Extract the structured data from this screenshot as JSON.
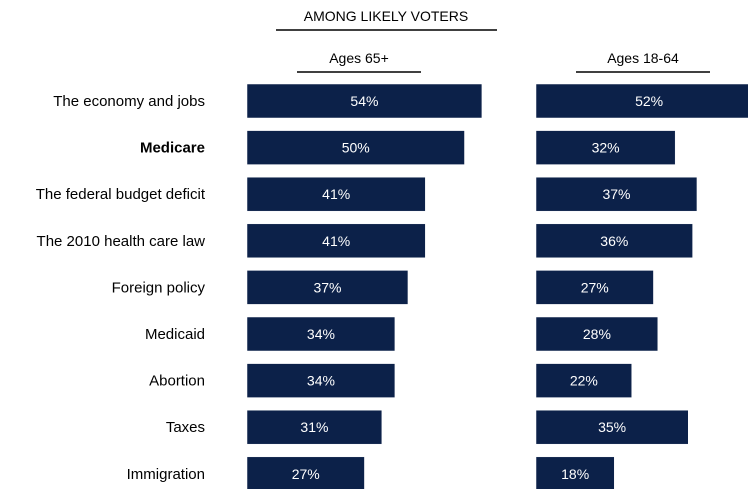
{
  "header": {
    "title": "AMONG LIKELY VOTERS"
  },
  "chart_data": {
    "type": "bar",
    "orientation": "horizontal",
    "title": "AMONG LIKELY VOTERS",
    "categories": [
      "The economy and jobs",
      "Medicare",
      "The federal budget deficit",
      "The 2010 health care law",
      "Foreign policy",
      "Medicaid",
      "Abortion",
      "Taxes",
      "Immigration"
    ],
    "emphasized_category": "Medicare",
    "series": [
      {
        "name": "Ages 65+",
        "values": [
          54,
          50,
          41,
          41,
          37,
          34,
          34,
          31,
          27
        ],
        "labels": [
          "54%",
          "50%",
          "41%",
          "41%",
          "37%",
          "34%",
          "34%",
          "31%",
          "27%"
        ]
      },
      {
        "name": "Ages 18-64",
        "values": [
          52,
          32,
          37,
          36,
          27,
          28,
          22,
          35,
          18
        ],
        "labels": [
          "52%",
          "32%",
          "37%",
          "36%",
          "27%",
          "28%",
          "22%",
          "35%",
          "18%"
        ]
      }
    ],
    "xlim": [
      0,
      54
    ],
    "grid": false,
    "legend": "none",
    "colors": {
      "bar": "#0c2149",
      "bar_text": "#ffffff",
      "text": "#000000"
    }
  }
}
